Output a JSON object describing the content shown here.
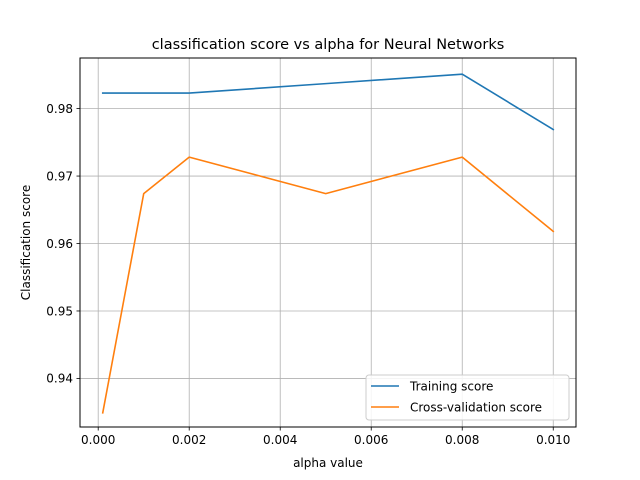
{
  "chart_data": {
    "type": "line",
    "title": "classification score vs alpha for Neural Networks",
    "xlabel": "alpha value",
    "ylabel": "Classification score",
    "xlim": [
      -0.0004,
      0.0105
    ],
    "ylim": [
      0.9328,
      0.9875
    ],
    "xticks": [
      0.0,
      0.002,
      0.004,
      0.006,
      0.008,
      0.01
    ],
    "xtick_labels": [
      "0.000",
      "0.002",
      "0.004",
      "0.006",
      "0.008",
      "0.010"
    ],
    "yticks": [
      0.94,
      0.95,
      0.96,
      0.97,
      0.98
    ],
    "ytick_labels": [
      "0.94",
      "0.95",
      "0.96",
      "0.97",
      "0.98"
    ],
    "grid": true,
    "legend_position": "bottom-right",
    "series": [
      {
        "name": "Training score",
        "color": "#1f77b4",
        "x": [
          0.0001,
          0.001,
          0.002,
          0.005,
          0.008,
          0.01
        ],
        "y": [
          0.9823,
          0.9823,
          0.9823,
          0.9837,
          0.9851,
          0.9769
        ]
      },
      {
        "name": "Cross-validation score",
        "color": "#ff7f0e",
        "x": [
          0.0001,
          0.001,
          0.002,
          0.005,
          0.008,
          0.01
        ],
        "y": [
          0.9349,
          0.9674,
          0.9728,
          0.9674,
          0.9728,
          0.9618
        ]
      }
    ]
  }
}
